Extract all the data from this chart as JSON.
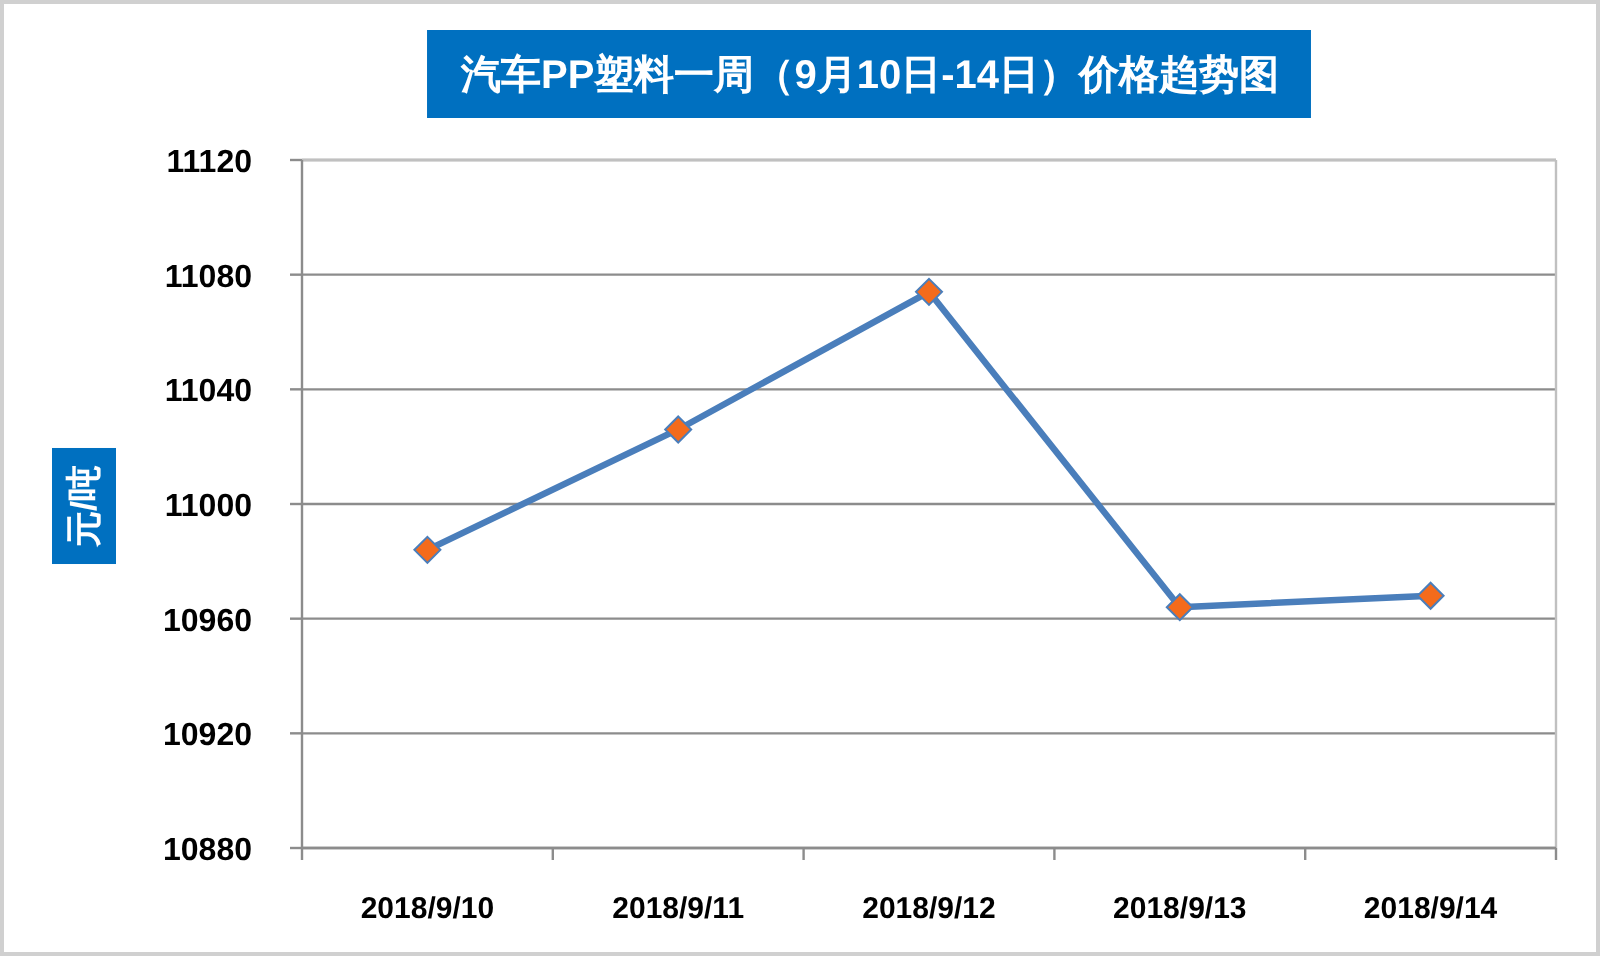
{
  "chart_data": {
    "type": "line",
    "title": "汽车PP塑料一周（9月10日-14日）价格趋势图",
    "ylabel": "元/吨",
    "categories": [
      "2018/9/10",
      "2018/9/11",
      "2018/9/12",
      "2018/9/13",
      "2018/9/14"
    ],
    "series": [
      {
        "color": "#4a7ebb",
        "colors": [
          "#f46b1c",
          "#f46b1c",
          "#f46b1c",
          "#f46b1c",
          "#f46b1c"
        ],
        "values": [
          10984,
          11026,
          11074,
          10964,
          10968
        ]
      }
    ],
    "ylim": [
      10880,
      11120
    ],
    "yticks": [
      10880,
      10920,
      10960,
      11000,
      11040,
      11080,
      11120
    ],
    "grid": "y",
    "marker": "diamond",
    "line_style": "solid"
  }
}
